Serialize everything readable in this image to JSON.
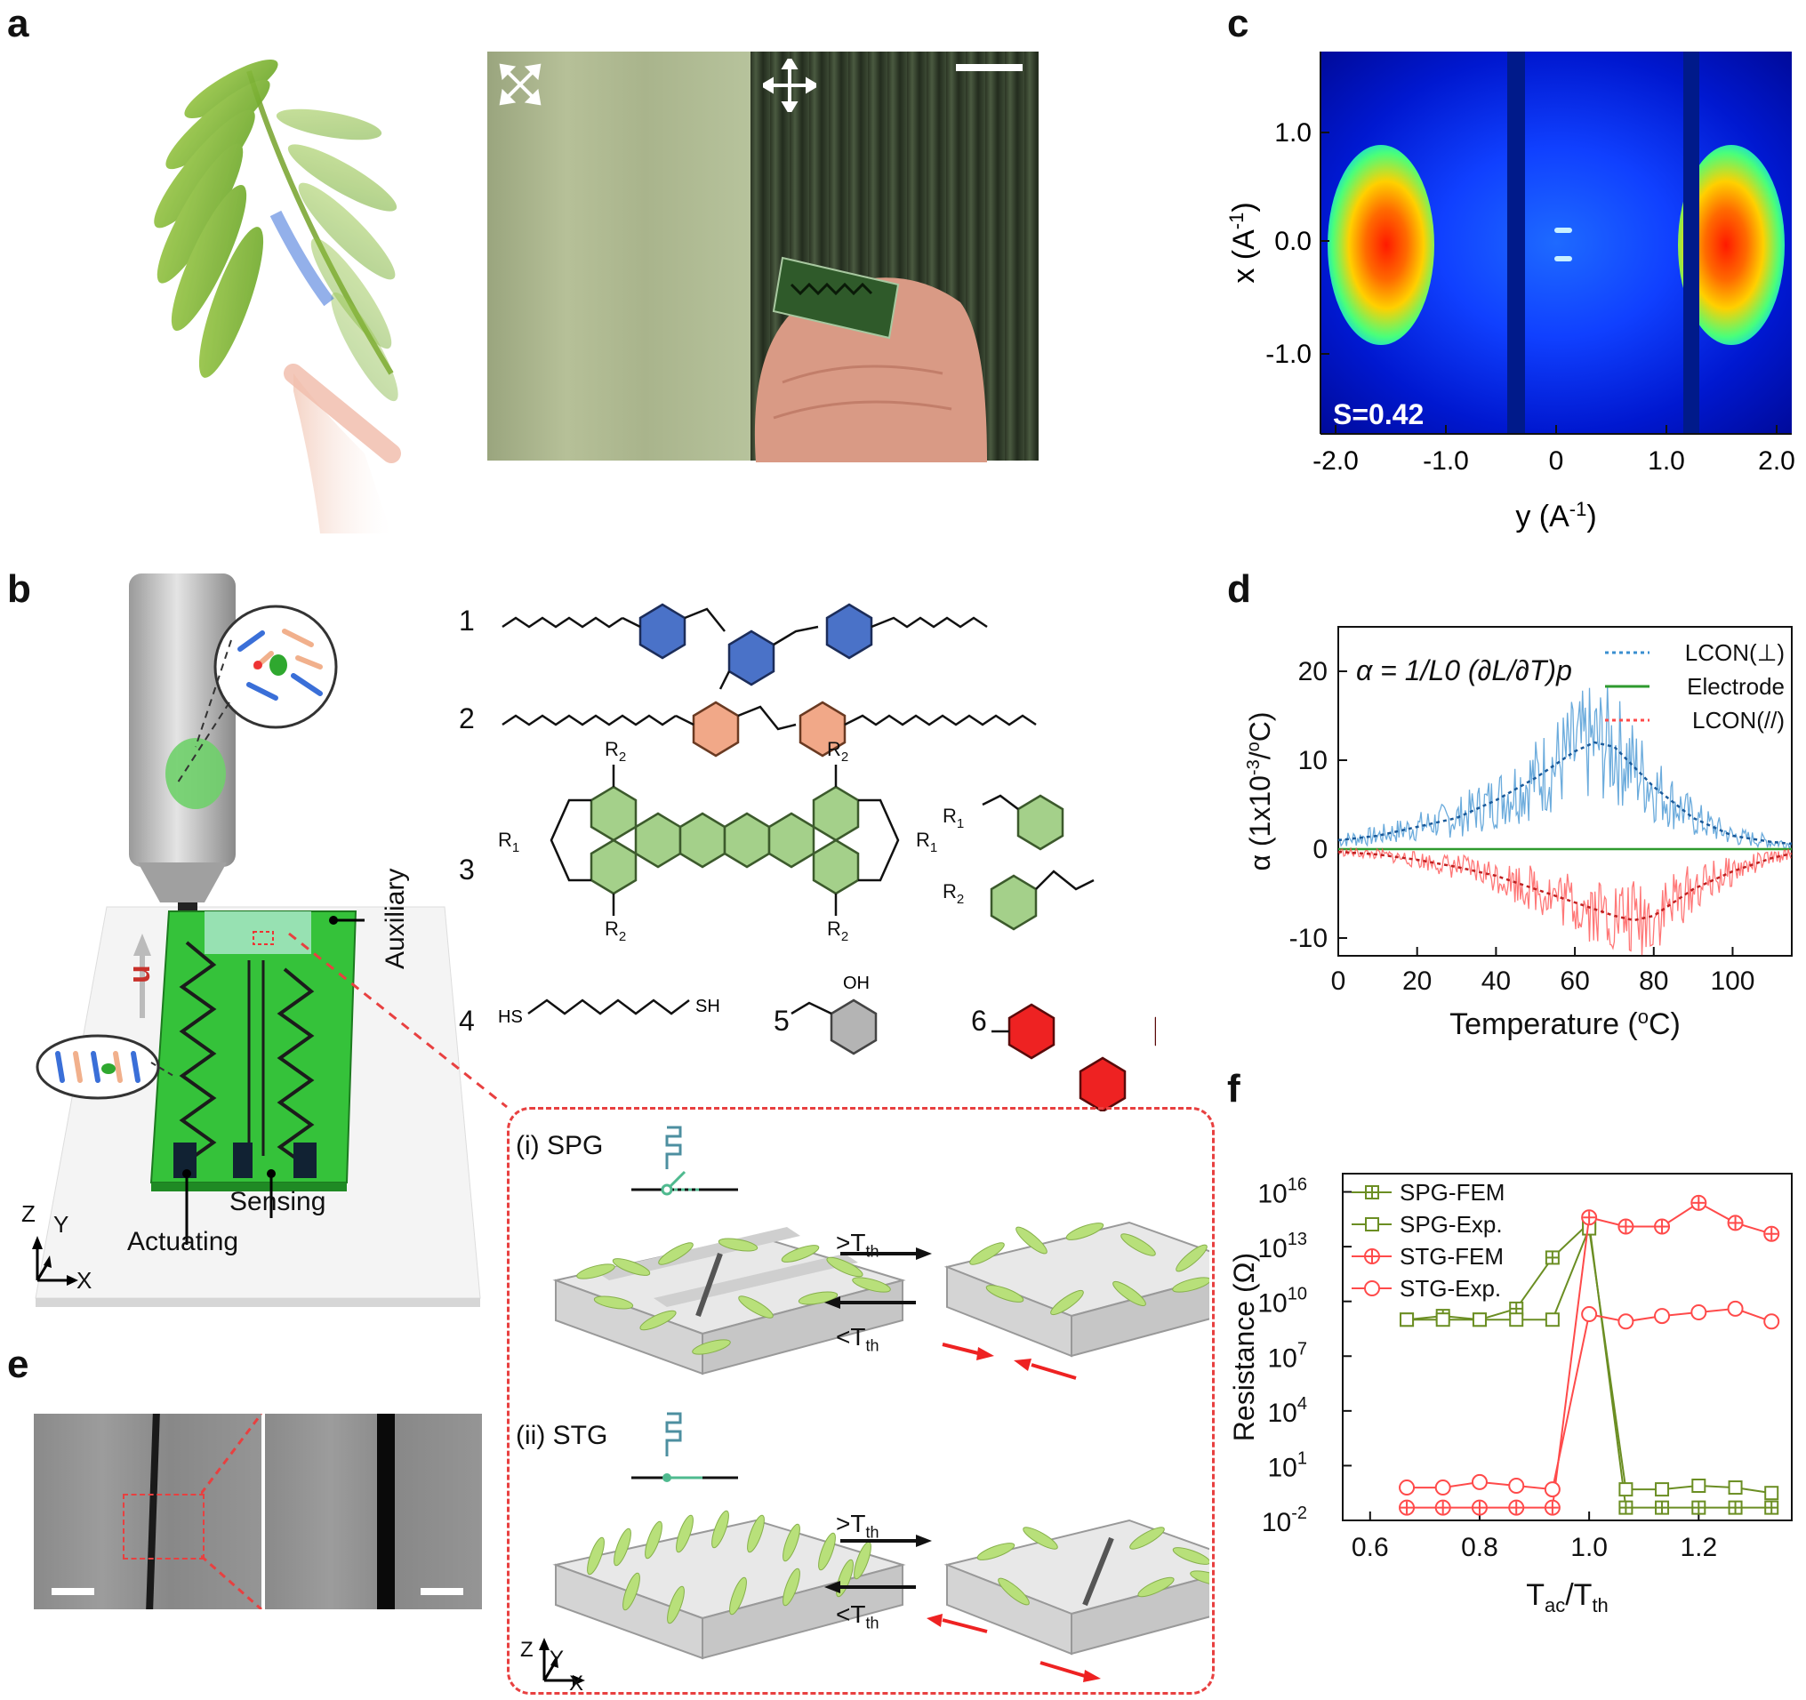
{
  "panels": {
    "a": "a",
    "b": "b",
    "c": "c",
    "d": "d",
    "e": "e",
    "f": "f"
  },
  "panel_b": {
    "u_label": "u",
    "auxiliary_label": "Auxiliary",
    "sensing_label": "Sensing",
    "actuating_label": "Actuating",
    "axis_z": "Z",
    "axis_y": "Y",
    "axis_x": "X",
    "compounds": {
      "n1": "1",
      "n2": "2",
      "n3": "3",
      "n4": "4",
      "n5": "5",
      "n6": "6",
      "r1": "R",
      "r1_sub": "1",
      "r2": "R",
      "r2_sub": "2",
      "c4_hs": "HS",
      "c4_sh": "SH",
      "c5_oh": "OH"
    },
    "spg_label": "(i) SPG",
    "stg_label": "(ii) STG",
    "gt_th": ">T",
    "lt_th": "<T",
    "th_sub": "th"
  },
  "panel_c": {
    "annotation": "S=0.42",
    "xlabel": "y (A",
    "xlabel_sup": "-1",
    "xlabel_end": ")",
    "ylabel": "x (A",
    "ylabel_sup": "-1",
    "ylabel_end": ")",
    "xticks": [
      "-2.0",
      "-1.0",
      "0",
      "1.0",
      "2.0"
    ],
    "yticks": [
      "1.0",
      "0.0",
      "-1.0"
    ]
  },
  "chart_data": [
    {
      "id": "d",
      "type": "line",
      "xlabel": "Temperature (",
      "xlabel_sup": "o",
      "xlabel_end": "C)",
      "ylabel": "α (1x10",
      "ylabel_sup": "-3",
      "ylabel_end": "/",
      "ylabel_sup2": "o",
      "ylabel_end2": "C)",
      "xlim": [
        0,
        115
      ],
      "ylim": [
        -12,
        25
      ],
      "xticks": [
        0,
        20,
        40,
        60,
        80,
        100
      ],
      "yticks": [
        -10,
        0,
        10,
        20
      ],
      "formula": "α = 1/L0 (∂L/∂T)p",
      "legend": [
        {
          "name": "LCON(⊥)",
          "color": "#3a8fd0",
          "style": "dotted"
        },
        {
          "name": "Electrode",
          "color": "#2e9a2e",
          "style": "solid"
        },
        {
          "name": "LCON(//)",
          "color": "#ff4a4a",
          "style": "dotted"
        }
      ],
      "series": [
        {
          "name": "LCON(⊥)",
          "x": [
            0,
            10,
            20,
            30,
            40,
            50,
            60,
            65,
            70,
            80,
            90,
            100,
            110,
            115
          ],
          "y": [
            1,
            1.5,
            2.5,
            3.5,
            5.5,
            8,
            11,
            12,
            11.5,
            7,
            3.5,
            1.5,
            0.8,
            0.6
          ]
        },
        {
          "name": "Electrode",
          "x": [
            0,
            115
          ],
          "y": [
            0,
            0
          ]
        },
        {
          "name": "LCON(//)",
          "x": [
            0,
            10,
            20,
            30,
            40,
            50,
            60,
            70,
            75,
            80,
            85,
            90,
            100,
            110,
            115
          ],
          "y": [
            -0.3,
            -0.6,
            -1.2,
            -2,
            -3,
            -4.5,
            -6,
            -7.5,
            -8,
            -7.5,
            -6,
            -4.5,
            -2.5,
            -1,
            -0.5
          ]
        }
      ]
    },
    {
      "id": "f",
      "type": "line",
      "xlabel": "T",
      "xlabel_sub1": "ac",
      "xlabel_mid": "/T",
      "xlabel_sub2": "th",
      "ylabel": "Resistance (Ω)",
      "xlim": [
        0.55,
        1.37
      ],
      "ylog": true,
      "ylim_exp": [
        -2,
        17
      ],
      "xticks": [
        "0.6",
        "0.8",
        "1.0",
        "1.2"
      ],
      "yticks": [
        {
          "base": "10",
          "exp": "16"
        },
        {
          "base": "10",
          "exp": "13"
        },
        {
          "base": "10",
          "exp": "10"
        },
        {
          "base": "10",
          "exp": "7"
        },
        {
          "base": "10",
          "exp": "4"
        },
        {
          "base": "10",
          "exp": "1"
        },
        {
          "base": "10",
          "exp": "-2"
        }
      ],
      "legend": [
        "SPG-FEM",
        "SPG-Exp.",
        "STG-FEM",
        "STG-Exp."
      ],
      "colors": {
        "SPG": "#6b8e23",
        "STG": "#ff4a4a"
      },
      "x": [
        0.667,
        0.733,
        0.8,
        0.867,
        0.933,
        1.0,
        1.067,
        1.133,
        1.2,
        1.267,
        1.333
      ],
      "series": [
        {
          "name": "SPG-FEM",
          "log_y": [
            9.0,
            9.2,
            9.0,
            9.6,
            12.4,
            14.3,
            -1.3,
            -1.3,
            -1.3,
            -1.3,
            -1.3
          ]
        },
        {
          "name": "SPG-Exp.",
          "log_y": [
            9.0,
            9.0,
            9.0,
            9.0,
            9.0,
            14.0,
            -0.3,
            -0.3,
            -0.1,
            -0.2,
            -0.5
          ]
        },
        {
          "name": "STG-FEM",
          "log_y": [
            -1.3,
            -1.3,
            -1.3,
            -1.3,
            -1.3,
            14.6,
            14.1,
            14.1,
            15.4,
            14.3,
            13.7
          ]
        },
        {
          "name": "STG-Exp.",
          "log_y": [
            -0.2,
            -0.2,
            0.1,
            -0.1,
            -0.3,
            9.3,
            8.9,
            9.2,
            9.4,
            9.6,
            8.9
          ]
        }
      ]
    }
  ]
}
